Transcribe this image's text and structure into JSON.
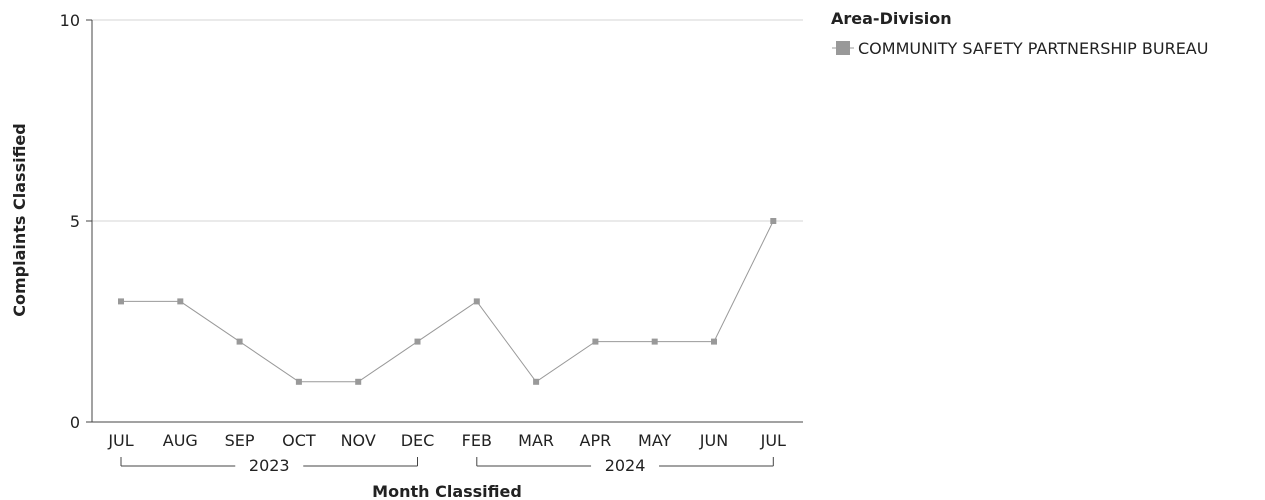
{
  "chart_data": {
    "type": "line",
    "xlabel": "Month Classified",
    "ylabel": "Complaints Classified",
    "ylim": [
      0,
      10
    ],
    "y_ticks": [
      0,
      5,
      10
    ],
    "grid": "horizontal",
    "legend_position": "top-right",
    "legend_title": "Area-Division",
    "categories": [
      "JUL",
      "AUG",
      "SEP",
      "OCT",
      "NOV",
      "DEC",
      "FEB",
      "MAR",
      "APR",
      "MAY",
      "JUN",
      "JUL"
    ],
    "year_groups": [
      {
        "label": "2023",
        "start": 0,
        "end": 5
      },
      {
        "label": "2024",
        "start": 6,
        "end": 11
      }
    ],
    "series": [
      {
        "name": "COMMUNITY SAFETY PARTNERSHIP BUREAU",
        "color": "#999999",
        "values": [
          3,
          3,
          2,
          1,
          1,
          2,
          3,
          1,
          2,
          2,
          2,
          5
        ]
      }
    ]
  }
}
